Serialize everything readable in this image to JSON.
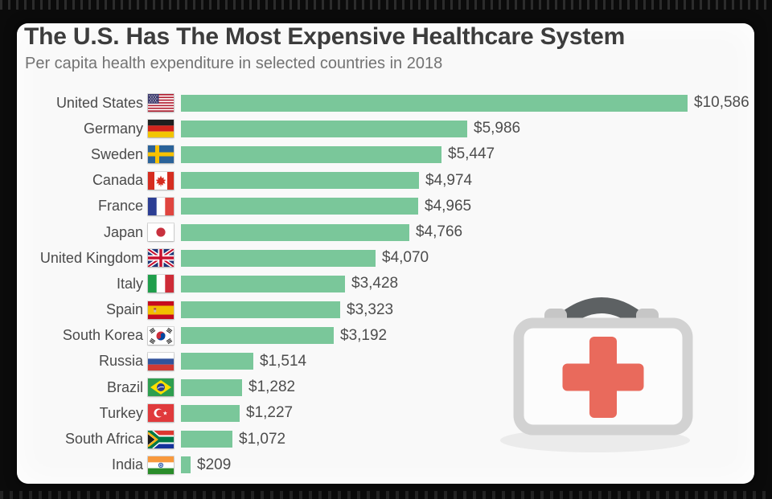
{
  "header": {
    "title": "The U.S. Has The Most Expensive Healthcare System",
    "subtitle": "Per capita health expenditure in selected countries in 2018"
  },
  "chart_data": {
    "type": "bar",
    "orientation": "horizontal",
    "title": "The U.S. Has The Most Expensive Healthcare System",
    "subtitle": "Per capita health expenditure in selected countries in 2018",
    "xlabel": "",
    "ylabel": "",
    "xlim": [
      0,
      10586
    ],
    "grid": false,
    "legend": false,
    "value_label_position": "end-of-bar",
    "categories": [
      "United States",
      "Germany",
      "Sweden",
      "Canada",
      "France",
      "Japan",
      "United Kingdom",
      "Italy",
      "Spain",
      "South Korea",
      "Russia",
      "Brazil",
      "Turkey",
      "South Africa",
      "India"
    ],
    "values": [
      10586,
      5986,
      5447,
      4974,
      4965,
      4766,
      4070,
      3428,
      3323,
      3192,
      1514,
      1282,
      1227,
      1072,
      209
    ],
    "value_labels": [
      "$10,586",
      "$5,986",
      "$5,447",
      "$4,974",
      "$4,965",
      "$4,766",
      "$4,070",
      "$3,428",
      "$3,323",
      "$3,192",
      "$1,514",
      "$1,282",
      "$1,227",
      "$1,072",
      "$209"
    ],
    "flag_icons": [
      "flag-united-states",
      "flag-germany",
      "flag-sweden",
      "flag-canada",
      "flag-france",
      "flag-japan",
      "flag-united-kingdom",
      "flag-italy",
      "flag-spain",
      "flag-south-korea",
      "flag-russia",
      "flag-brazil",
      "flag-turkey",
      "flag-south-africa",
      "flag-india"
    ]
  },
  "decoration": {
    "icon": "first-aid-kit-icon",
    "colors": {
      "bar_green": "#7ac79a",
      "title_text": "#3c3c3c",
      "subtitle_text": "#737373",
      "label_text": "#4a4a4a",
      "card_background": "#f9f9f9",
      "frame_black": "#0b0b0b",
      "kit_cross_red": "#e96a5c",
      "kit_case_gray": "#d2d2d2",
      "kit_mount_gray": "#c6c6c6",
      "kit_handle_gray": "#5d6163",
      "kit_shadow_gray": "#ebebeb"
    }
  }
}
